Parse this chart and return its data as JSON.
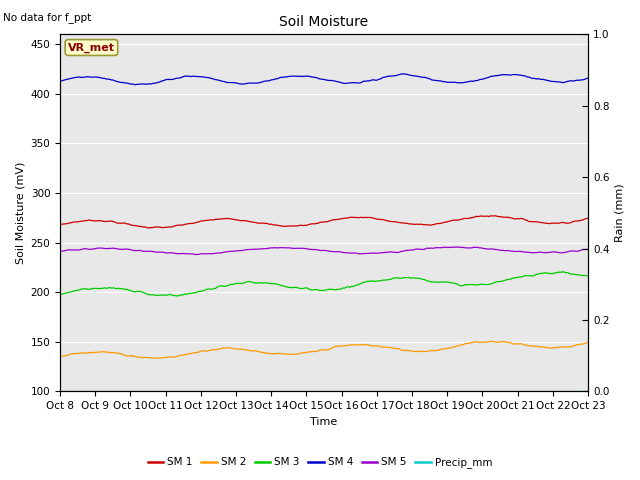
{
  "title": "Soil Moisture",
  "xlabel": "Time",
  "ylabel_left": "Soil Moisture (mV)",
  "ylabel_right": "Rain (mm)",
  "annotation": "No data for f_ppt",
  "legend_label": "VR_met",
  "ylim_left": [
    100,
    460
  ],
  "ylim_right": [
    0.0,
    1.0
  ],
  "yticks_left": [
    100,
    150,
    200,
    250,
    300,
    350,
    400,
    450
  ],
  "yticks_right": [
    0.0,
    0.2,
    0.4,
    0.6,
    0.8,
    1.0
  ],
  "series": {
    "SM1": {
      "color": "#cc0000",
      "base": 268,
      "amplitude": 4,
      "freq": 8,
      "trend": 6,
      "noise": 0.8
    },
    "SM2": {
      "color": "#ff9900",
      "base": 135,
      "amplitude": 4,
      "freq": 8,
      "trend": 14,
      "noise": 1.0
    },
    "SM3": {
      "color": "#00cc00",
      "base": 198,
      "amplitude": 5,
      "freq": 7,
      "trend": 18,
      "noise": 1.2
    },
    "SM4": {
      "color": "#0000cc",
      "base": 413,
      "amplitude": 4,
      "freq": 10,
      "trend": 3,
      "noise": 0.8
    },
    "SM5": {
      "color": "#9900cc",
      "base": 241,
      "amplitude": 3,
      "freq": 6,
      "trend": 2,
      "noise": 0.7
    },
    "Precip": {
      "color": "#00cccc",
      "base": 0.0,
      "amplitude": 0,
      "freq": 0,
      "trend": 0,
      "noise": 0
    }
  },
  "legend_entries": [
    {
      "label": "SM 1",
      "color": "#cc0000"
    },
    {
      "label": "SM 2",
      "color": "#ff9900"
    },
    {
      "label": "SM 3",
      "color": "#00cc00"
    },
    {
      "label": "SM 4",
      "color": "#0000cc"
    },
    {
      "label": "SM 5",
      "color": "#9900cc"
    },
    {
      "label": "Precip_mm",
      "color": "#00cccc"
    }
  ],
  "bg_color": "#e8e8e8",
  "fig_color": "#ffffff",
  "grid_color": "#ffffff",
  "x_tick_labels": [
    "Oct 8",
    "Oct 9",
    "Oct 10",
    "Oct 11",
    "Oct 12",
    "Oct 13",
    "Oct 14",
    "Oct 15",
    "Oct 16",
    "Oct 17",
    "Oct 18",
    "Oct 19",
    "Oct 20",
    "Oct 21",
    "Oct 22",
    "Oct 23"
  ]
}
